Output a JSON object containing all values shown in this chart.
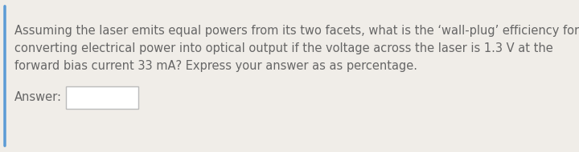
{
  "background_color": "#f0ede8",
  "left_border_color": "#5b9bd5",
  "text_color": "#666666",
  "question_text_line1": "Assuming the laser emits equal powers from its two facets, what is the ‘wall-plug’ efficiency for",
  "question_text_line2": "converting electrical power into optical output if the voltage across the laser is 1.3 V at the",
  "question_text_line3": "forward bias current 33 mA? Express your answer as as percentage.",
  "answer_label": "Answer:",
  "font_size": 10.5,
  "answer_box_facecolor": "#ffffff",
  "answer_box_edgecolor": "#bbbbbb"
}
